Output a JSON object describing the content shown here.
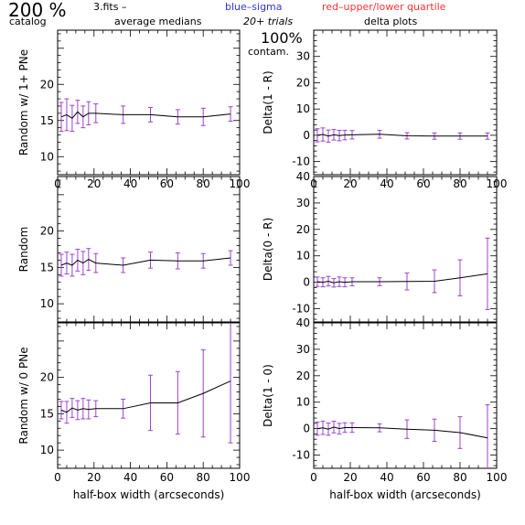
{
  "header": {
    "percent_big": "200 %",
    "catalog_label": "catalog",
    "file_label": "3.fits  –",
    "avg_label": "average medians",
    "legend_blue": "blue–sigma",
    "legend_red": "red–upper/lower quartile",
    "trials_label": "20+ trials",
    "delta_title": "delta plots",
    "contam_pct": "100%",
    "contam_label": "contam."
  },
  "colors": {
    "blue": "#3333dd",
    "red": "#ff3333",
    "error_bar": "#9a44d0",
    "line": "#000000"
  },
  "chart_data": [
    {
      "type": "line",
      "panel": "left-top",
      "ylabel": "Random w/ 1+ PNe",
      "xlabel": "",
      "xlim": [
        0,
        100
      ],
      "ylim": [
        7.5,
        27.5
      ],
      "xticks": [
        0,
        20,
        40,
        60,
        80,
        100
      ],
      "yticks": [
        10,
        15,
        20
      ],
      "show_xtick_labels": true,
      "x": [
        2,
        5,
        8,
        11,
        14,
        17,
        21,
        36,
        51,
        66,
        80,
        95
      ],
      "y": [
        15.5,
        15.8,
        15.3,
        16.2,
        15.5,
        16.0,
        16.0,
        15.8,
        15.8,
        15.5,
        15.5,
        15.9
      ],
      "err": [
        2.0,
        2.2,
        1.8,
        1.6,
        1.5,
        1.6,
        1.3,
        1.2,
        1.0,
        1.0,
        1.2,
        1.0
      ]
    },
    {
      "type": "line",
      "panel": "left-middle",
      "ylabel": "Random",
      "xlabel": "",
      "xlim": [
        0,
        100
      ],
      "ylim": [
        7.5,
        27.5
      ],
      "xticks": [
        0,
        20,
        40,
        60,
        80,
        100
      ],
      "yticks": [
        10,
        15,
        20
      ],
      "show_xtick_labels": false,
      "x": [
        2,
        5,
        8,
        11,
        14,
        17,
        21,
        36,
        51,
        66,
        80,
        95
      ],
      "y": [
        15.3,
        15.6,
        15.3,
        16.0,
        15.6,
        16.1,
        15.6,
        15.3,
        16.0,
        15.9,
        15.9,
        16.3
      ],
      "err": [
        1.5,
        1.5,
        1.5,
        1.5,
        1.6,
        1.5,
        1.3,
        1.0,
        1.1,
        1.1,
        1.0,
        1.0
      ]
    },
    {
      "type": "line",
      "panel": "left-bottom",
      "ylabel": "Random w/ 0 PNe",
      "xlabel": "half-box width (arcseconds)",
      "xlim": [
        0,
        100
      ],
      "ylim": [
        7.5,
        27.5
      ],
      "xticks": [
        0,
        20,
        40,
        60,
        80,
        100
      ],
      "yticks": [
        10,
        15,
        20
      ],
      "show_xtick_labels": true,
      "x": [
        2,
        5,
        8,
        11,
        14,
        17,
        21,
        36,
        51,
        66,
        80,
        95
      ],
      "y": [
        15.5,
        15.2,
        15.8,
        15.5,
        15.7,
        15.6,
        15.7,
        15.7,
        16.5,
        16.5,
        17.8,
        19.5
      ],
      "err": [
        1.2,
        1.5,
        1.3,
        1.3,
        1.4,
        1.3,
        1.1,
        1.3,
        3.8,
        4.3,
        6.0,
        8.5
      ]
    },
    {
      "type": "line",
      "panel": "right-top",
      "ylabel": "Delta(1 - R)",
      "xlabel": "",
      "xlim": [
        0,
        100
      ],
      "ylim": [
        -15,
        40
      ],
      "xticks": [
        0,
        20,
        40,
        60,
        80,
        100
      ],
      "yticks": [
        -10,
        0,
        10,
        20,
        30
      ],
      "show_xtick_labels": true,
      "x": [
        2,
        5,
        8,
        11,
        14,
        17,
        21,
        36,
        51,
        66,
        80,
        95
      ],
      "y": [
        0.0,
        0.3,
        -0.3,
        0.2,
        -0.1,
        0.1,
        0.2,
        0.4,
        -0.2,
        -0.3,
        -0.3,
        -0.3
      ],
      "err": [
        2.5,
        2.5,
        2.3,
        2.0,
        2.0,
        1.8,
        1.6,
        1.5,
        1.2,
        1.2,
        1.2,
        1.2
      ]
    },
    {
      "type": "line",
      "panel": "right-middle",
      "ylabel": "Delta(0 - R)",
      "xlabel": "",
      "xlim": [
        0,
        100
      ],
      "ylim": [
        -15,
        40
      ],
      "xticks": [
        0,
        20,
        40,
        60,
        80,
        100
      ],
      "yticks": [
        -10,
        0,
        10,
        20,
        30
      ],
      "top_tick_label": "40",
      "show_xtick_labels": false,
      "x": [
        2,
        5,
        8,
        11,
        14,
        17,
        21,
        36,
        51,
        66,
        80,
        95
      ],
      "y": [
        0.2,
        0.0,
        0.4,
        -0.2,
        0.2,
        0.0,
        0.2,
        0.2,
        0.3,
        0.4,
        1.7,
        3.2
      ],
      "err": [
        1.8,
        1.7,
        1.8,
        1.6,
        1.8,
        1.7,
        1.5,
        1.5,
        3.2,
        4.3,
        6.8,
        13.5
      ]
    },
    {
      "type": "line",
      "panel": "right-bottom",
      "ylabel": "Delta(1 - 0)",
      "xlabel": "half-box width (arcseconds)",
      "xlim": [
        0,
        100
      ],
      "ylim": [
        -15,
        40
      ],
      "xticks": [
        0,
        20,
        40,
        60,
        80,
        100
      ],
      "yticks": [
        -10,
        0,
        10,
        20,
        30
      ],
      "top_tick_label": "40",
      "show_xtick_labels": true,
      "x": [
        2,
        5,
        8,
        11,
        14,
        17,
        21,
        36,
        51,
        66,
        80,
        95
      ],
      "y": [
        0.0,
        0.3,
        -0.2,
        0.6,
        0.0,
        0.4,
        0.4,
        0.3,
        -0.2,
        -0.6,
        -1.5,
        -3.5
      ],
      "err": [
        2.5,
        2.5,
        2.3,
        2.2,
        2.0,
        1.8,
        1.8,
        1.5,
        3.5,
        4.2,
        6.0,
        12.5
      ]
    }
  ]
}
